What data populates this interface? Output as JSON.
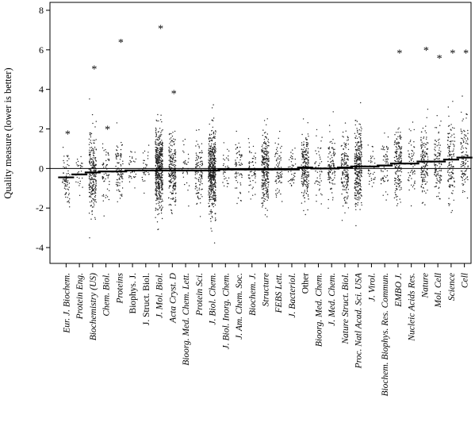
{
  "chart_data": {
    "type": "scatter",
    "ylabel": "Quality measure (lower is better)",
    "ylim": [
      -4.8,
      8.4
    ],
    "yticks": [
      -4,
      -2,
      0,
      2,
      4,
      6,
      8
    ],
    "reference_line": 0,
    "categories": [
      {
        "name": "Eur. J. Biochem.",
        "italic": true,
        "median": -0.45,
        "outlier": 1.75,
        "n": 70,
        "spread": 1.0
      },
      {
        "name": "Protein Eng.",
        "italic": true,
        "median": -0.3,
        "outlier": null,
        "n": 30,
        "spread": 0.8
      },
      {
        "name": "Biochemistry (US)",
        "italic": true,
        "median": -0.2,
        "outlier": 5.05,
        "n": 260,
        "spread": 1.3
      },
      {
        "name": "Chem. Biol.",
        "italic": true,
        "median": -0.15,
        "outlier": 2.0,
        "n": 60,
        "spread": 0.9
      },
      {
        "name": "Proteins",
        "italic": true,
        "median": -0.15,
        "outlier": 6.4,
        "n": 90,
        "spread": 1.0
      },
      {
        "name": "Biophys. J.",
        "italic": false,
        "median": -0.1,
        "outlier": null,
        "n": 30,
        "spread": 0.8
      },
      {
        "name": "J. Struct. Biol.",
        "italic": false,
        "median": -0.1,
        "outlier": null,
        "n": 30,
        "spread": 0.8
      },
      {
        "name": "J. Mol. Biol.",
        "italic": true,
        "median": -0.1,
        "outlier": 7.1,
        "n": 500,
        "spread": 1.4
      },
      {
        "name": "Acta Cryst. D",
        "italic": true,
        "median": -0.1,
        "outlier": 3.8,
        "n": 220,
        "spread": 1.2
      },
      {
        "name": "Bioorg. Med. Chem. Lett.",
        "italic": true,
        "median": -0.1,
        "outlier": null,
        "n": 30,
        "spread": 0.8
      },
      {
        "name": "Protein Sci.",
        "italic": true,
        "median": -0.1,
        "outlier": null,
        "n": 110,
        "spread": 1.1
      },
      {
        "name": "J. Biol. Chem.",
        "italic": true,
        "median": -0.1,
        "outlier": null,
        "n": 500,
        "spread": 1.3
      },
      {
        "name": "J. Biol. Inorg. Chem.",
        "italic": true,
        "median": -0.05,
        "outlier": null,
        "n": 35,
        "spread": 0.8
      },
      {
        "name": "J. Am. Chem. Soc.",
        "italic": true,
        "median": -0.05,
        "outlier": null,
        "n": 70,
        "spread": 0.9
      },
      {
        "name": "Biochem. J.",
        "italic": true,
        "median": -0.05,
        "outlier": null,
        "n": 60,
        "spread": 0.9
      },
      {
        "name": "Structure",
        "italic": true,
        "median": -0.05,
        "outlier": null,
        "n": 280,
        "spread": 1.2
      },
      {
        "name": "FEBS Lett.",
        "italic": true,
        "median": -0.05,
        "outlier": null,
        "n": 80,
        "spread": 1.0
      },
      {
        "name": "J. Bacteriol.",
        "italic": true,
        "median": -0.05,
        "outlier": null,
        "n": 40,
        "spread": 0.8
      },
      {
        "name": "Other",
        "italic": false,
        "median": 0.05,
        "outlier": null,
        "n": 220,
        "spread": 1.2
      },
      {
        "name": "Bioorg. Med. Chem.",
        "italic": true,
        "median": 0.0,
        "outlier": null,
        "n": 50,
        "spread": 0.9
      },
      {
        "name": "J. Med. Chem.",
        "italic": true,
        "median": 0.0,
        "outlier": null,
        "n": 110,
        "spread": 1.0
      },
      {
        "name": "Nature Struct. Biol.",
        "italic": true,
        "median": 0.05,
        "outlier": null,
        "n": 170,
        "spread": 1.2
      },
      {
        "name": "Proc. Natl Acad. Sci. USA",
        "italic": true,
        "median": 0.1,
        "outlier": null,
        "n": 300,
        "spread": 1.3
      },
      {
        "name": "J. Virol.",
        "italic": true,
        "median": 0.1,
        "outlier": null,
        "n": 35,
        "spread": 0.8
      },
      {
        "name": "Biochem. Biophys. Res. Commun.",
        "italic": true,
        "median": 0.15,
        "outlier": null,
        "n": 60,
        "spread": 0.9
      },
      {
        "name": "EMBO J.",
        "italic": true,
        "median": 0.25,
        "outlier": 5.85,
        "n": 170,
        "spread": 1.2
      },
      {
        "name": "Nucleic Acids Res.",
        "italic": true,
        "median": 0.25,
        "outlier": null,
        "n": 60,
        "spread": 1.0
      },
      {
        "name": "Nature",
        "italic": true,
        "median": 0.35,
        "outlier": 6.0,
        "n": 150,
        "spread": 1.3
      },
      {
        "name": "Mol. Cell",
        "italic": true,
        "median": 0.35,
        "outlier": 5.6,
        "n": 110,
        "spread": 1.2
      },
      {
        "name": "Science",
        "italic": true,
        "median": 0.45,
        "outlier": 5.85,
        "n": 130,
        "spread": 1.3
      },
      {
        "name": "Cell",
        "italic": true,
        "median": 0.55,
        "outlier": 5.85,
        "n": 110,
        "spread": 1.3
      }
    ]
  }
}
